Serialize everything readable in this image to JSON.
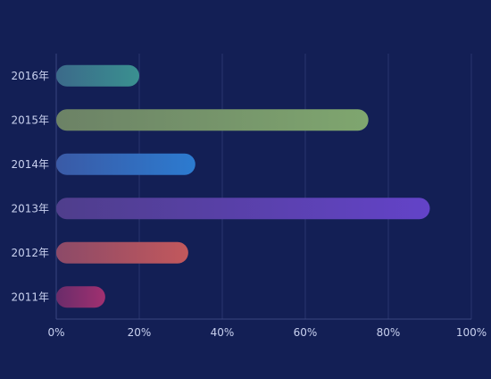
{
  "page": {
    "background": "#131f55"
  },
  "chart_data": {
    "type": "bar",
    "orientation": "horizontal",
    "categories": [
      "2011年",
      "2012年",
      "2013年",
      "2014年",
      "2015年",
      "2016年"
    ],
    "values": [
      11.8,
      31.8,
      90.0,
      33.5,
      75.2,
      20.0
    ],
    "x_ticks": [
      "0%",
      "20%",
      "40%",
      "60%",
      "80%",
      "100%"
    ],
    "xlim": [
      0,
      100
    ],
    "x_unit": "%",
    "grid": true,
    "legend": "none",
    "title": "",
    "xlabel": "",
    "ylabel": "",
    "colors": {
      "axis_text": "#c9d1ef",
      "grid": "#2a3670",
      "axis_line": "#3a4680"
    },
    "bar_gradients": [
      {
        "from": "#6a2c6a",
        "to": "#a03070"
      },
      {
        "from": "#8c4a68",
        "to": "#c2585c"
      },
      {
        "from": "#4f3e8c",
        "to": "#6343c8"
      },
      {
        "from": "#3a5aa6",
        "to": "#2c7bd0"
      },
      {
        "from": "#6c8266",
        "to": "#7fa66f"
      },
      {
        "from": "#3b6a8a",
        "to": "#3a9090"
      }
    ]
  }
}
